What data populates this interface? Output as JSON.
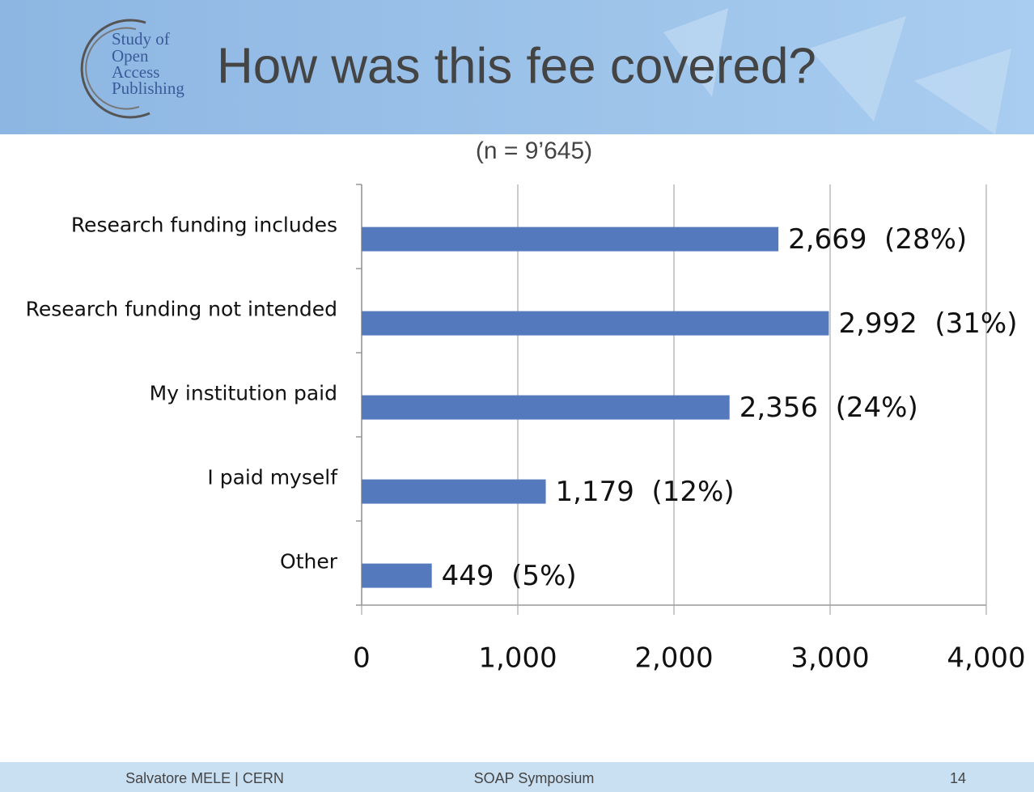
{
  "chart_data": {
    "type": "barh",
    "title": "How was this fee covered?",
    "subtitle": "(n = 9’645)",
    "categories": [
      "Research funding includes",
      "Research funding not intended",
      "My institution paid",
      "I paid myself",
      "Other"
    ],
    "values": [
      2669,
      2992,
      2356,
      1179,
      449
    ],
    "value_labels": [
      "2,669  (28%)",
      "2,992  (31%)",
      "2,356  (24%)",
      "1,179  (12%)",
      "449  (5%)"
    ],
    "color": "#5579bd",
    "xlim": [
      0,
      4000
    ],
    "xticks": [
      0,
      {
        "value": 1000,
        "label": "1,000"
      },
      {
        "value": 2000,
        "label": "2,000"
      },
      {
        "value": 3000,
        "label": "3,000"
      },
      {
        "value": 4000,
        "label": "4,000"
      }
    ],
    "grid": true
  },
  "slide": {
    "logo": [
      "Study of",
      "Open",
      "Access",
      "Publishing"
    ],
    "footer": {
      "presenter": "Salvatore MELE | CERN",
      "event": "SOAP Symposium",
      "page": "14"
    }
  }
}
